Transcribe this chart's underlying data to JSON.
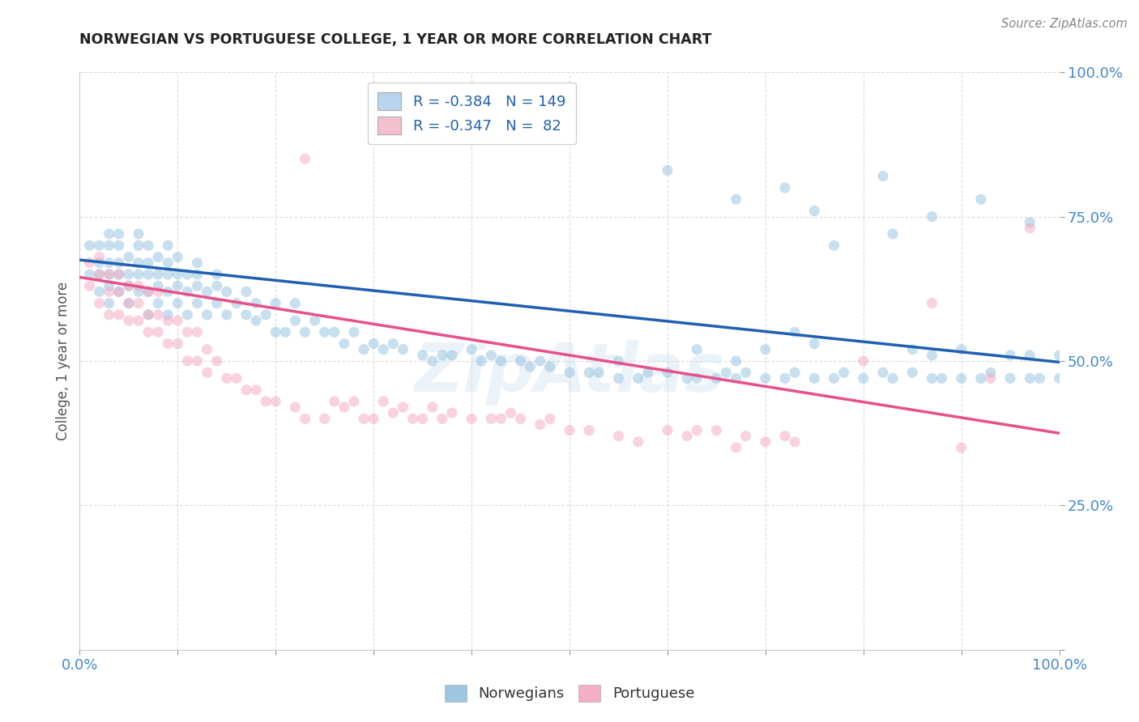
{
  "title": "NORWEGIAN VS PORTUGUESE COLLEGE, 1 YEAR OR MORE CORRELATION CHART",
  "source": "Source: ZipAtlas.com",
  "ylabel": "College, 1 year or more",
  "blue_R": -0.384,
  "blue_N": 149,
  "pink_R": -0.347,
  "pink_N": 82,
  "xlim": [
    0.0,
    1.0
  ],
  "ylim": [
    0.0,
    1.0
  ],
  "xticks": [
    0.0,
    0.1,
    0.2,
    0.3,
    0.4,
    0.5,
    0.6,
    0.7,
    0.8,
    0.9,
    1.0
  ],
  "yticks": [
    0.0,
    0.25,
    0.5,
    0.75,
    1.0
  ],
  "blue_color": "#92c0e0",
  "pink_color": "#f4a6bf",
  "blue_line_color": "#2060b0",
  "pink_line_color": "#e8508a",
  "title_color": "#222222",
  "source_color": "#888888",
  "tick_color": "#4488cc",
  "watermark": "ZipAtlas",
  "legend_box_blue": "#b8d4ee",
  "legend_box_pink": "#f4c0d0",
  "blue_line_y0": 0.675,
  "blue_line_y1": 0.498,
  "pink_line_y0": 0.645,
  "pink_line_y1": 0.375,
  "marker_size": 90,
  "marker_alpha": 0.5,
  "line_width": 2.5,
  "grid_color": "#cccccc",
  "grid_alpha": 0.7,
  "bg_color": "#ffffff",
  "blue_scatter_x": [
    0.01,
    0.01,
    0.02,
    0.02,
    0.02,
    0.02,
    0.03,
    0.03,
    0.03,
    0.03,
    0.03,
    0.03,
    0.04,
    0.04,
    0.04,
    0.04,
    0.04,
    0.05,
    0.05,
    0.05,
    0.05,
    0.06,
    0.06,
    0.06,
    0.06,
    0.06,
    0.07,
    0.07,
    0.07,
    0.07,
    0.07,
    0.08,
    0.08,
    0.08,
    0.08,
    0.09,
    0.09,
    0.09,
    0.09,
    0.09,
    0.1,
    0.1,
    0.1,
    0.1,
    0.11,
    0.11,
    0.11,
    0.12,
    0.12,
    0.12,
    0.12,
    0.13,
    0.13,
    0.14,
    0.14,
    0.14,
    0.15,
    0.15,
    0.16,
    0.17,
    0.17,
    0.18,
    0.18,
    0.19,
    0.2,
    0.2,
    0.21,
    0.22,
    0.22,
    0.23,
    0.24,
    0.25,
    0.26,
    0.27,
    0.28,
    0.29,
    0.3,
    0.31,
    0.32,
    0.33,
    0.35,
    0.36,
    0.37,
    0.38,
    0.4,
    0.41,
    0.42,
    0.43,
    0.45,
    0.46,
    0.47,
    0.48,
    0.5,
    0.52,
    0.53,
    0.55,
    0.55,
    0.57,
    0.58,
    0.6,
    0.62,
    0.63,
    0.63,
    0.65,
    0.66,
    0.67,
    0.67,
    0.68,
    0.7,
    0.7,
    0.72,
    0.73,
    0.73,
    0.75,
    0.75,
    0.77,
    0.78,
    0.8,
    0.82,
    0.83,
    0.85,
    0.85,
    0.87,
    0.87,
    0.88,
    0.9,
    0.9,
    0.92,
    0.93,
    0.95,
    0.95,
    0.97,
    0.97,
    0.98,
    1.0,
    1.0,
    0.6,
    0.67,
    0.72,
    0.75,
    0.82,
    0.87,
    0.92,
    0.97,
    0.77,
    0.83
  ],
  "blue_scatter_y": [
    0.65,
    0.7,
    0.62,
    0.65,
    0.67,
    0.7,
    0.6,
    0.63,
    0.65,
    0.67,
    0.7,
    0.72,
    0.62,
    0.65,
    0.67,
    0.7,
    0.72,
    0.6,
    0.63,
    0.65,
    0.68,
    0.62,
    0.65,
    0.67,
    0.7,
    0.72,
    0.58,
    0.62,
    0.65,
    0.67,
    0.7,
    0.6,
    0.63,
    0.65,
    0.68,
    0.58,
    0.62,
    0.65,
    0.67,
    0.7,
    0.6,
    0.63,
    0.65,
    0.68,
    0.58,
    0.62,
    0.65,
    0.6,
    0.63,
    0.65,
    0.67,
    0.58,
    0.62,
    0.6,
    0.63,
    0.65,
    0.58,
    0.62,
    0.6,
    0.58,
    0.62,
    0.57,
    0.6,
    0.58,
    0.55,
    0.6,
    0.55,
    0.57,
    0.6,
    0.55,
    0.57,
    0.55,
    0.55,
    0.53,
    0.55,
    0.52,
    0.53,
    0.52,
    0.53,
    0.52,
    0.51,
    0.5,
    0.51,
    0.51,
    0.52,
    0.5,
    0.51,
    0.5,
    0.5,
    0.49,
    0.5,
    0.49,
    0.48,
    0.48,
    0.48,
    0.47,
    0.5,
    0.47,
    0.48,
    0.48,
    0.47,
    0.47,
    0.52,
    0.47,
    0.48,
    0.47,
    0.5,
    0.48,
    0.47,
    0.52,
    0.47,
    0.48,
    0.55,
    0.47,
    0.53,
    0.47,
    0.48,
    0.47,
    0.48,
    0.47,
    0.48,
    0.52,
    0.47,
    0.51,
    0.47,
    0.47,
    0.52,
    0.47,
    0.48,
    0.47,
    0.51,
    0.47,
    0.51,
    0.47,
    0.47,
    0.51,
    0.83,
    0.78,
    0.8,
    0.76,
    0.82,
    0.75,
    0.78,
    0.74,
    0.7,
    0.72
  ],
  "pink_scatter_x": [
    0.01,
    0.01,
    0.02,
    0.02,
    0.02,
    0.03,
    0.03,
    0.03,
    0.04,
    0.04,
    0.04,
    0.05,
    0.05,
    0.05,
    0.06,
    0.06,
    0.06,
    0.07,
    0.07,
    0.07,
    0.08,
    0.08,
    0.08,
    0.09,
    0.09,
    0.1,
    0.1,
    0.11,
    0.11,
    0.12,
    0.12,
    0.13,
    0.13,
    0.14,
    0.15,
    0.16,
    0.17,
    0.18,
    0.19,
    0.2,
    0.22,
    0.23,
    0.25,
    0.26,
    0.27,
    0.28,
    0.29,
    0.3,
    0.31,
    0.32,
    0.33,
    0.34,
    0.35,
    0.36,
    0.37,
    0.38,
    0.4,
    0.42,
    0.43,
    0.44,
    0.45,
    0.47,
    0.48,
    0.5,
    0.52,
    0.55,
    0.57,
    0.6,
    0.62,
    0.63,
    0.65,
    0.67,
    0.68,
    0.7,
    0.72,
    0.73,
    0.8,
    0.87,
    0.9,
    0.93,
    0.97,
    0.23
  ],
  "pink_scatter_y": [
    0.63,
    0.67,
    0.6,
    0.65,
    0.68,
    0.58,
    0.62,
    0.65,
    0.58,
    0.62,
    0.65,
    0.57,
    0.6,
    0.63,
    0.57,
    0.6,
    0.63,
    0.55,
    0.58,
    0.62,
    0.55,
    0.58,
    0.62,
    0.53,
    0.57,
    0.53,
    0.57,
    0.5,
    0.55,
    0.5,
    0.55,
    0.48,
    0.52,
    0.5,
    0.47,
    0.47,
    0.45,
    0.45,
    0.43,
    0.43,
    0.42,
    0.4,
    0.4,
    0.43,
    0.42,
    0.43,
    0.4,
    0.4,
    0.43,
    0.41,
    0.42,
    0.4,
    0.4,
    0.42,
    0.4,
    0.41,
    0.4,
    0.4,
    0.4,
    0.41,
    0.4,
    0.39,
    0.4,
    0.38,
    0.38,
    0.37,
    0.36,
    0.38,
    0.37,
    0.38,
    0.38,
    0.35,
    0.37,
    0.36,
    0.37,
    0.36,
    0.5,
    0.6,
    0.35,
    0.47,
    0.73,
    0.85
  ]
}
